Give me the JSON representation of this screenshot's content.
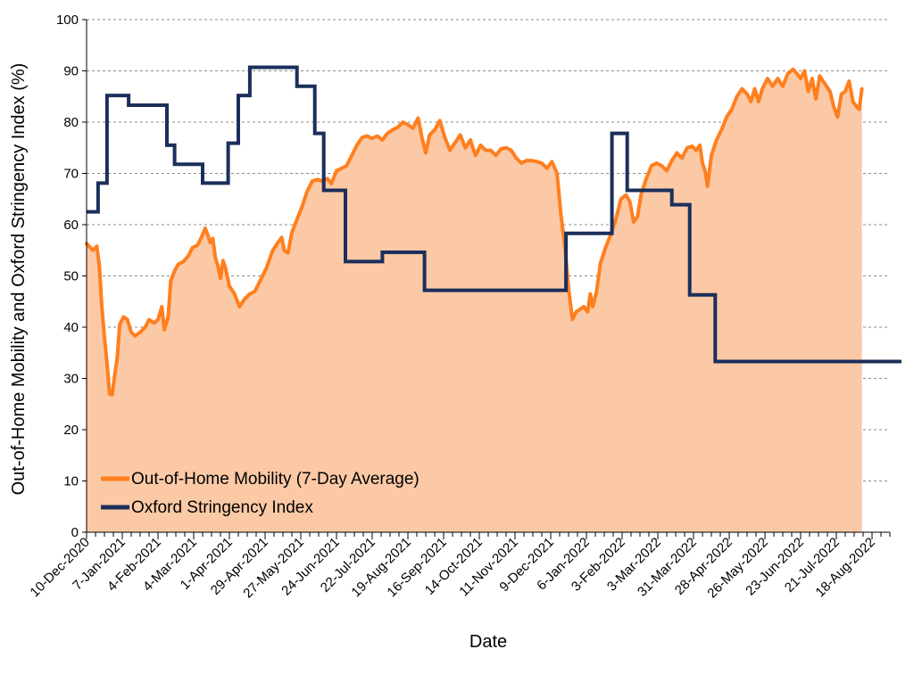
{
  "chart_data": {
    "type": "line",
    "title": "",
    "xlabel": "Date",
    "ylabel": "Out-of-Home Mobility and Oxford Stringency Index (%)",
    "ylim": [
      0,
      100
    ],
    "xlim": [
      "2020-12-10",
      "2022-09-01"
    ],
    "y_ticks": [
      0,
      10,
      20,
      30,
      40,
      50,
      60,
      70,
      80,
      90,
      100
    ],
    "x_ticks": [
      {
        "date": "2020-12-10",
        "label": "10-Dec-2020"
      },
      {
        "date": "2021-01-07",
        "label": "7-Jan-2021"
      },
      {
        "date": "2021-02-04",
        "label": "4-Feb-2021"
      },
      {
        "date": "2021-03-04",
        "label": "4-Mar-2021"
      },
      {
        "date": "2021-04-01",
        "label": "1-Apr-2021"
      },
      {
        "date": "2021-04-29",
        "label": "29-Apr-2021"
      },
      {
        "date": "2021-05-27",
        "label": "27-May-2021"
      },
      {
        "date": "2021-06-24",
        "label": "24-Jun-2021"
      },
      {
        "date": "2021-07-22",
        "label": "22-Jul-2021"
      },
      {
        "date": "2021-08-19",
        "label": "19-Aug-2021"
      },
      {
        "date": "2021-09-16",
        "label": "16-Sep-2021"
      },
      {
        "date": "2021-10-14",
        "label": "14-Oct-2021"
      },
      {
        "date": "2021-11-11",
        "label": "11-Nov-2021"
      },
      {
        "date": "2021-12-09",
        "label": "9-Dec-2021"
      },
      {
        "date": "2022-01-06",
        "label": "6-Jan-2022"
      },
      {
        "date": "2022-02-03",
        "label": "3-Feb-2022"
      },
      {
        "date": "2022-03-03",
        "label": "3-Mar-2022"
      },
      {
        "date": "2022-03-31",
        "label": "31-Mar-2022"
      },
      {
        "date": "2022-04-28",
        "label": "28-Apr-2022"
      },
      {
        "date": "2022-05-26",
        "label": "26-May-2022"
      },
      {
        "date": "2022-06-23",
        "label": "23-Jun-2022"
      },
      {
        "date": "2022-07-21",
        "label": "21-Jul-2022"
      },
      {
        "date": "2022-08-18",
        "label": "18-Aug-2022"
      }
    ],
    "grid": {
      "horizontal": true,
      "style": "dashed"
    },
    "legend_position": "bottom-left",
    "series": [
      {
        "name": "Out-of-Home Mobility (7-Day Average)",
        "color": "#FF7F1E",
        "fill": "#FBC9A6",
        "style": "area",
        "points": [
          [
            "2020-12-10",
            56.3
          ],
          [
            "2020-12-13",
            55.5
          ],
          [
            "2020-12-15",
            55.0
          ],
          [
            "2020-12-18",
            55.8
          ],
          [
            "2020-12-20",
            52.0
          ],
          [
            "2020-12-22",
            44.0
          ],
          [
            "2020-12-24",
            38.0
          ],
          [
            "2020-12-26",
            33.0
          ],
          [
            "2020-12-28",
            27.0
          ],
          [
            "2020-12-30",
            26.8
          ],
          [
            "2021-01-01",
            30.5
          ],
          [
            "2021-01-03",
            34.0
          ],
          [
            "2021-01-05",
            40.5
          ],
          [
            "2021-01-08",
            42.0
          ],
          [
            "2021-01-11",
            41.5
          ],
          [
            "2021-01-14",
            39.0
          ],
          [
            "2021-01-17",
            38.3
          ],
          [
            "2021-01-21",
            39.0
          ],
          [
            "2021-01-25",
            40.0
          ],
          [
            "2021-01-28",
            41.5
          ],
          [
            "2021-02-01",
            40.8
          ],
          [
            "2021-02-04",
            41.5
          ],
          [
            "2021-02-07",
            44.0
          ],
          [
            "2021-02-09",
            39.5
          ],
          [
            "2021-02-12",
            42.0
          ],
          [
            "2021-02-14",
            49.0
          ],
          [
            "2021-02-17",
            51.0
          ],
          [
            "2021-02-20",
            52.3
          ],
          [
            "2021-02-24",
            52.8
          ],
          [
            "2021-02-28",
            54.0
          ],
          [
            "2021-03-03",
            55.5
          ],
          [
            "2021-03-07",
            56.0
          ],
          [
            "2021-03-10",
            57.5
          ],
          [
            "2021-03-13",
            59.3
          ],
          [
            "2021-03-15",
            58.0
          ],
          [
            "2021-03-17",
            56.5
          ],
          [
            "2021-03-19",
            57.3
          ],
          [
            "2021-03-21",
            53.5
          ],
          [
            "2021-03-23",
            52.0
          ],
          [
            "2021-03-25",
            49.5
          ],
          [
            "2021-03-27",
            53.0
          ],
          [
            "2021-03-29",
            51.5
          ],
          [
            "2021-04-01",
            48.0
          ],
          [
            "2021-04-05",
            46.5
          ],
          [
            "2021-04-09",
            44.0
          ],
          [
            "2021-04-13",
            45.5
          ],
          [
            "2021-04-17",
            46.5
          ],
          [
            "2021-04-21",
            47.0
          ],
          [
            "2021-04-25",
            49.0
          ],
          [
            "2021-04-30",
            51.5
          ],
          [
            "2021-05-05",
            55.0
          ],
          [
            "2021-05-09",
            56.5
          ],
          [
            "2021-05-12",
            57.5
          ],
          [
            "2021-05-14",
            55.0
          ],
          [
            "2021-05-17",
            54.5
          ],
          [
            "2021-05-20",
            58.5
          ],
          [
            "2021-05-24",
            61.0
          ],
          [
            "2021-05-28",
            63.5
          ],
          [
            "2021-06-01",
            66.5
          ],
          [
            "2021-06-05",
            68.5
          ],
          [
            "2021-06-09",
            68.8
          ],
          [
            "2021-06-13",
            68.5
          ],
          [
            "2021-06-17",
            69.0
          ],
          [
            "2021-06-20",
            68.0
          ],
          [
            "2021-06-24",
            70.5
          ],
          [
            "2021-06-28",
            71.0
          ],
          [
            "2021-07-02",
            71.5
          ],
          [
            "2021-07-06",
            73.5
          ],
          [
            "2021-07-10",
            75.5
          ],
          [
            "2021-07-14",
            77.0
          ],
          [
            "2021-07-18",
            77.3
          ],
          [
            "2021-07-22",
            76.8
          ],
          [
            "2021-07-26",
            77.3
          ],
          [
            "2021-07-30",
            76.5
          ],
          [
            "2021-08-03",
            77.8
          ],
          [
            "2021-08-07",
            78.5
          ],
          [
            "2021-08-11",
            79.0
          ],
          [
            "2021-08-15",
            80.0
          ],
          [
            "2021-08-19",
            79.5
          ],
          [
            "2021-08-23",
            78.8
          ],
          [
            "2021-08-27",
            80.8
          ],
          [
            "2021-08-30",
            77.0
          ],
          [
            "2021-09-02",
            74.0
          ],
          [
            "2021-09-05",
            77.5
          ],
          [
            "2021-09-09",
            78.5
          ],
          [
            "2021-09-13",
            80.3
          ],
          [
            "2021-09-17",
            77.0
          ],
          [
            "2021-09-21",
            74.5
          ],
          [
            "2021-09-25",
            76.0
          ],
          [
            "2021-09-29",
            77.5
          ],
          [
            "2021-10-03",
            75.0
          ],
          [
            "2021-10-07",
            76.5
          ],
          [
            "2021-10-11",
            73.5
          ],
          [
            "2021-10-15",
            75.5
          ],
          [
            "2021-10-19",
            74.5
          ],
          [
            "2021-10-23",
            74.5
          ],
          [
            "2021-10-27",
            73.5
          ],
          [
            "2021-10-31",
            74.8
          ],
          [
            "2021-11-04",
            75.0
          ],
          [
            "2021-11-08",
            74.5
          ],
          [
            "2021-11-12",
            73.0
          ],
          [
            "2021-11-16",
            72.0
          ],
          [
            "2021-11-20",
            72.5
          ],
          [
            "2021-11-24",
            72.5
          ],
          [
            "2021-11-28",
            72.3
          ],
          [
            "2021-12-02",
            72.0
          ],
          [
            "2021-12-06",
            71.0
          ],
          [
            "2021-12-10",
            72.3
          ],
          [
            "2021-12-14",
            70.0
          ],
          [
            "2021-12-17",
            62.0
          ],
          [
            "2021-12-20",
            56.0
          ],
          [
            "2021-12-23",
            47.5
          ],
          [
            "2021-12-26",
            41.5
          ],
          [
            "2021-12-29",
            43.0
          ],
          [
            "2022-01-01",
            43.5
          ],
          [
            "2022-01-04",
            44.0
          ],
          [
            "2022-01-07",
            43.0
          ],
          [
            "2022-01-09",
            46.5
          ],
          [
            "2022-01-11",
            44.0
          ],
          [
            "2022-01-14",
            47.0
          ],
          [
            "2022-01-17",
            52.5
          ],
          [
            "2022-01-21",
            55.5
          ],
          [
            "2022-01-25",
            58.0
          ],
          [
            "2022-01-29",
            61.0
          ],
          [
            "2022-02-02",
            65.0
          ],
          [
            "2022-02-06",
            65.8
          ],
          [
            "2022-02-09",
            64.5
          ],
          [
            "2022-02-12",
            60.5
          ],
          [
            "2022-02-15",
            61.5
          ],
          [
            "2022-02-18",
            66.0
          ],
          [
            "2022-02-22",
            69.0
          ],
          [
            "2022-02-26",
            71.5
          ],
          [
            "2022-03-02",
            72.0
          ],
          [
            "2022-03-06",
            71.5
          ],
          [
            "2022-03-10",
            70.5
          ],
          [
            "2022-03-14",
            72.5
          ],
          [
            "2022-03-18",
            74.0
          ],
          [
            "2022-03-22",
            73.0
          ],
          [
            "2022-03-26",
            75.0
          ],
          [
            "2022-03-30",
            75.3
          ],
          [
            "2022-04-02",
            74.5
          ],
          [
            "2022-04-05",
            75.5
          ],
          [
            "2022-04-07",
            72.0
          ],
          [
            "2022-04-09",
            70.5
          ],
          [
            "2022-04-11",
            67.5
          ],
          [
            "2022-04-14",
            73.5
          ],
          [
            "2022-04-18",
            76.5
          ],
          [
            "2022-04-22",
            78.5
          ],
          [
            "2022-04-26",
            81.0
          ],
          [
            "2022-04-30",
            82.5
          ],
          [
            "2022-05-04",
            85.0
          ],
          [
            "2022-05-08",
            86.5
          ],
          [
            "2022-05-12",
            85.5
          ],
          [
            "2022-05-15",
            84.0
          ],
          [
            "2022-05-18",
            86.5
          ],
          [
            "2022-05-21",
            84.0
          ],
          [
            "2022-05-24",
            86.5
          ],
          [
            "2022-05-28",
            88.5
          ],
          [
            "2022-06-01",
            87.0
          ],
          [
            "2022-06-05",
            88.5
          ],
          [
            "2022-06-09",
            87.0
          ],
          [
            "2022-06-13",
            89.5
          ],
          [
            "2022-06-17",
            90.3
          ],
          [
            "2022-06-20",
            89.5
          ],
          [
            "2022-06-23",
            88.5
          ],
          [
            "2022-06-26",
            90.0
          ],
          [
            "2022-06-29",
            86.0
          ],
          [
            "2022-07-02",
            88.5
          ],
          [
            "2022-07-05",
            84.5
          ],
          [
            "2022-07-08",
            89.0
          ],
          [
            "2022-07-12",
            87.5
          ],
          [
            "2022-07-16",
            86.0
          ],
          [
            "2022-07-19",
            83.0
          ],
          [
            "2022-07-22",
            81.0
          ],
          [
            "2022-07-25",
            85.5
          ],
          [
            "2022-07-28",
            86.0
          ],
          [
            "2022-07-31",
            88.0
          ],
          [
            "2022-08-03",
            84.0
          ],
          [
            "2022-08-06",
            83.0
          ],
          [
            "2022-08-08",
            82.5
          ],
          [
            "2022-08-10",
            86.5
          ]
        ]
      },
      {
        "name": "Oxford Stringency Index",
        "color": "#1B2F5B",
        "style": "step",
        "points": [
          [
            "2020-12-10",
            62.5
          ],
          [
            "2020-12-19",
            68.1
          ],
          [
            "2020-12-26",
            85.2
          ],
          [
            "2021-01-12",
            83.3
          ],
          [
            "2021-02-11",
            75.5
          ],
          [
            "2021-02-17",
            71.8
          ],
          [
            "2021-03-11",
            68.1
          ],
          [
            "2021-03-31",
            75.9
          ],
          [
            "2021-04-08",
            85.2
          ],
          [
            "2021-04-17",
            90.7
          ],
          [
            "2021-05-24",
            87.0
          ],
          [
            "2021-06-07",
            77.8
          ],
          [
            "2021-06-14",
            66.7
          ],
          [
            "2021-07-01",
            52.8
          ],
          [
            "2021-07-30",
            54.6
          ],
          [
            "2021-09-01",
            47.2
          ],
          [
            "2021-12-21",
            58.3
          ],
          [
            "2022-01-26",
            77.8
          ],
          [
            "2022-02-07",
            66.7
          ],
          [
            "2022-03-14",
            63.9
          ],
          [
            "2022-03-28",
            46.3
          ],
          [
            "2022-04-17",
            33.3
          ],
          [
            "2022-09-10",
            33.3
          ]
        ]
      }
    ]
  }
}
